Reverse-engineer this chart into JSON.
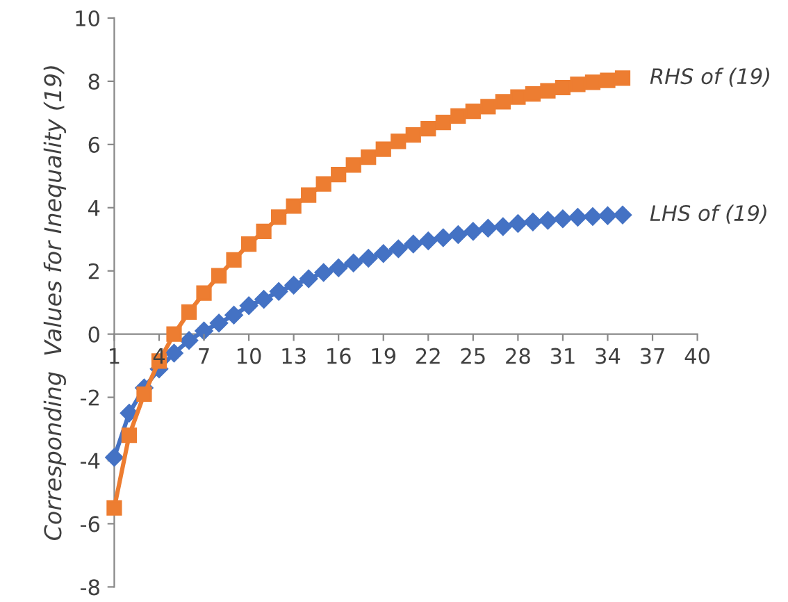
{
  "chart_data": {
    "type": "line",
    "ylabel": "Corresponding  Values for Inequality (19)",
    "x": [
      1,
      2,
      3,
      4,
      5,
      6,
      7,
      8,
      9,
      10,
      11,
      12,
      13,
      14,
      15,
      16,
      17,
      18,
      19,
      20,
      21,
      22,
      23,
      24,
      25,
      26,
      27,
      28,
      29,
      30,
      31,
      32,
      33,
      34,
      35
    ],
    "series": [
      {
        "name": "LHS of (19)",
        "color": "#4472c4",
        "marker": "diamond",
        "values": [
          -3.9,
          -2.5,
          -1.7,
          -1.1,
          -0.6,
          -0.2,
          0.1,
          0.35,
          0.6,
          0.9,
          1.1,
          1.35,
          1.55,
          1.75,
          1.95,
          2.1,
          2.25,
          2.4,
          2.55,
          2.7,
          2.85,
          2.95,
          3.05,
          3.15,
          3.25,
          3.35,
          3.4,
          3.5,
          3.55,
          3.6,
          3.65,
          3.7,
          3.72,
          3.75,
          3.77
        ]
      },
      {
        "name": "RHS of (19)",
        "color": "#ed7d31",
        "marker": "square",
        "values": [
          -5.5,
          -3.2,
          -1.9,
          -0.85,
          0,
          0.7,
          1.3,
          1.85,
          2.35,
          2.85,
          3.25,
          3.7,
          4.05,
          4.4,
          4.75,
          5.05,
          5.35,
          5.6,
          5.85,
          6.1,
          6.3,
          6.5,
          6.7,
          6.9,
          7.05,
          7.2,
          7.35,
          7.5,
          7.6,
          7.7,
          7.8,
          7.9,
          7.97,
          8.03,
          8.1
        ]
      }
    ],
    "xlim": [
      1,
      40
    ],
    "xticks": [
      1,
      4,
      7,
      10,
      13,
      16,
      19,
      22,
      25,
      28,
      31,
      34,
      37,
      40
    ],
    "ylim": [
      -8,
      10
    ],
    "yticks": [
      -8,
      -6,
      -4,
      -2,
      0,
      2,
      4,
      6,
      8,
      10
    ],
    "grid": false,
    "legend": false,
    "line_style": "solid"
  }
}
